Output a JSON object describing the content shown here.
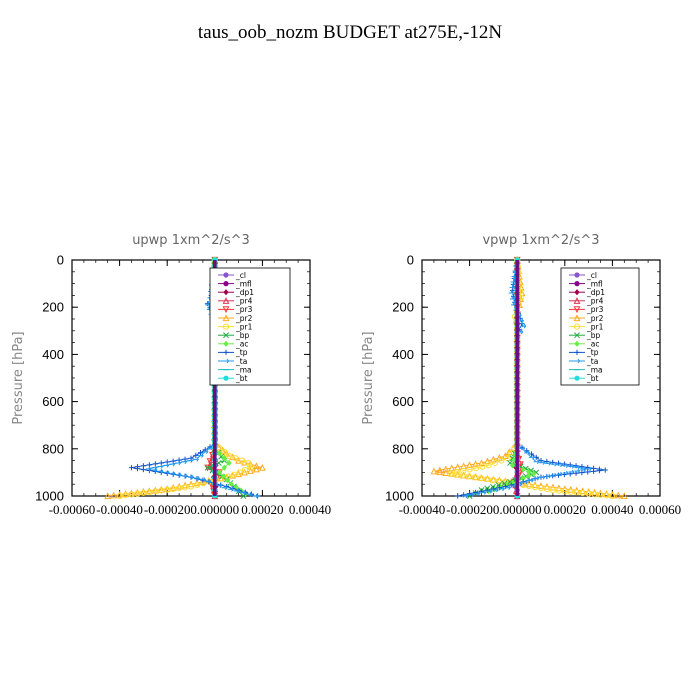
{
  "figure_title": "taus_oob_nozm  BUDGET at275E,-12N",
  "chart_data": [
    {
      "type": "line",
      "title": "upwp   1xm^2/s^3",
      "ylabel": "Pressure [hPa]",
      "ylim": [
        0,
        1000
      ],
      "y_inverted": true,
      "xlim": [
        -0.0006,
        0.0004
      ],
      "yticks": [
        "0",
        "200",
        "400",
        "600",
        "800",
        "1000"
      ],
      "xtick_labels": [
        "-0.00060",
        "-0.00040",
        "-0.00020",
        "0.000000",
        "0.00020",
        "0.00040"
      ],
      "legend_position": "top-right",
      "series": [
        {
          "name": "_cl",
          "color": "#8855cc",
          "marker": "circle-filled",
          "values": [
            [
              0,
              0
            ],
            [
              0,
              1000
            ]
          ]
        },
        {
          "name": "_mfl",
          "color": "#8b008b",
          "marker": "circle-filled",
          "values": [
            [
              0,
              0
            ],
            [
              0,
              1000
            ]
          ]
        },
        {
          "name": "_dp1",
          "color": "#a0004a",
          "marker": "diamond",
          "values": [
            [
              0,
              0
            ],
            [
              0,
              800
            ],
            [
              5e-06,
              870
            ],
            [
              -5e-06,
              920
            ],
            [
              5e-06,
              960
            ],
            [
              0,
              1000
            ]
          ]
        },
        {
          "name": "_pr4",
          "color": "#dd3355",
          "marker": "triangle",
          "values": [
            [
              0,
              0
            ],
            [
              0,
              800
            ],
            [
              -2e-05,
              870
            ],
            [
              1e-05,
              900
            ],
            [
              -5e-06,
              950
            ],
            [
              0,
              1000
            ]
          ]
        },
        {
          "name": "_pr3",
          "color": "#ff3333",
          "marker": "triangle-down",
          "values": [
            [
              0,
              0
            ],
            [
              0,
              800
            ],
            [
              -3e-05,
              880
            ],
            [
              2e-05,
              900
            ],
            [
              -1e-05,
              960
            ],
            [
              0,
              1000
            ]
          ]
        },
        {
          "name": "_pr2",
          "color": "#ffaa22",
          "marker": "triangle",
          "values": [
            [
              0,
              0
            ],
            [
              1.5e-05,
              170
            ],
            [
              1e-05,
              200
            ],
            [
              5e-06,
              260
            ],
            [
              0,
              300
            ],
            [
              0,
              780
            ],
            [
              5e-05,
              820
            ],
            [
              0.0001,
              850
            ],
            [
              0.0002,
              880
            ],
            [
              5e-05,
              920
            ],
            [
              -0.0002,
              970
            ],
            [
              -0.00045,
              1000
            ]
          ]
        },
        {
          "name": "_pr1",
          "color": "#ffdd33",
          "marker": "circle-open",
          "values": [
            [
              0,
              0
            ],
            [
              1e-05,
              180
            ],
            [
              5e-06,
              230
            ],
            [
              0,
              280
            ],
            [
              0,
              780
            ],
            [
              6e-05,
              830
            ],
            [
              0.00014,
              860
            ],
            [
              0.00015,
              880
            ],
            [
              8e-05,
              910
            ],
            [
              -0.0001,
              960
            ],
            [
              -0.0004,
              1000
            ]
          ]
        },
        {
          "name": "_bp",
          "color": "#22aa44",
          "marker": "x",
          "values": [
            [
              0,
              0
            ],
            [
              0,
              800
            ],
            [
              4e-05,
              850
            ],
            [
              -3e-05,
              880
            ],
            [
              5e-05,
              930
            ],
            [
              8e-05,
              960
            ],
            [
              0.00012,
              1000
            ]
          ]
        },
        {
          "name": "_ac",
          "color": "#66ee44",
          "marker": "diamond",
          "values": [
            [
              0,
              0
            ],
            [
              0,
              800
            ],
            [
              6e-05,
              860
            ],
            [
              2e-05,
              900
            ],
            [
              7e-05,
              950
            ],
            [
              0.00013,
              990
            ]
          ]
        },
        {
          "name": "_tp",
          "color": "#1155cc",
          "marker": "plus",
          "values": [
            [
              0,
              0
            ],
            [
              -1.5e-05,
              150
            ],
            [
              -3e-05,
              185
            ],
            [
              -1e-05,
              220
            ],
            [
              0,
              270
            ],
            [
              0,
              780
            ],
            [
              -0.0001,
              840
            ],
            [
              -0.00035,
              880
            ],
            [
              -0.0001,
              920
            ],
            [
              5e-05,
              960
            ],
            [
              0.00018,
              1000
            ]
          ]
        },
        {
          "name": "_ta",
          "color": "#2299ee",
          "marker": "arrow",
          "values": [
            [
              0,
              0
            ],
            [
              -2e-05,
              160
            ],
            [
              -3e-05,
              190
            ],
            [
              -1.5e-05,
              230
            ],
            [
              0,
              280
            ],
            [
              0,
              780
            ],
            [
              -8e-05,
              845
            ],
            [
              -0.00028,
              885
            ],
            [
              -5e-05,
              930
            ],
            [
              4e-05,
              965
            ],
            [
              0.00017,
              1000
            ]
          ]
        },
        {
          "name": "_ma",
          "color": "#22bbcc",
          "marker": "dash",
          "values": [
            [
              0,
              0
            ],
            [
              0,
              1000
            ]
          ]
        },
        {
          "name": "_bt",
          "color": "#22dddd",
          "marker": "circle-filled",
          "values": [
            [
              0,
              0
            ],
            [
              0,
              1000
            ]
          ]
        }
      ]
    },
    {
      "type": "line",
      "title": "vpwp   1xm^2/s^3",
      "ylabel": "Pressure [hPa]",
      "ylim": [
        0,
        1000
      ],
      "y_inverted": true,
      "xlim": [
        -0.0004,
        0.0006
      ],
      "yticks": [
        "0",
        "200",
        "400",
        "600",
        "800",
        "1000"
      ],
      "xtick_labels": [
        "-0.00040",
        "-0.00020",
        "0.000000",
        "0.00020",
        "0.00040",
        "0.00060"
      ],
      "legend_position": "top-right",
      "series": [
        {
          "name": "_cl",
          "color": "#8855cc",
          "marker": "circle-filled",
          "values": [
            [
              0,
              0
            ],
            [
              0,
              1000
            ]
          ]
        },
        {
          "name": "_mfl",
          "color": "#8b008b",
          "marker": "circle-filled",
          "values": [
            [
              0,
              0
            ],
            [
              0,
              1000
            ]
          ]
        },
        {
          "name": "_dp1",
          "color": "#a0004a",
          "marker": "diamond",
          "values": [
            [
              0,
              0
            ],
            [
              0,
              800
            ],
            [
              -5e-06,
              880
            ],
            [
              5e-06,
              930
            ],
            [
              0,
              1000
            ]
          ]
        },
        {
          "name": "_pr4",
          "color": "#dd3355",
          "marker": "triangle",
          "values": [
            [
              0,
              0
            ],
            [
              0,
              800
            ],
            [
              1e-05,
              880
            ],
            [
              -1e-05,
              930
            ],
            [
              0,
              1000
            ]
          ]
        },
        {
          "name": "_pr3",
          "color": "#ff3333",
          "marker": "triangle-down",
          "values": [
            [
              0,
              0
            ],
            [
              0,
              820
            ],
            [
              2e-05,
              890
            ],
            [
              -1e-05,
              940
            ],
            [
              0,
              1000
            ]
          ]
        },
        {
          "name": "_pr2",
          "color": "#ffaa22",
          "marker": "triangle",
          "values": [
            [
              0,
              0
            ],
            [
              2e-05,
              140
            ],
            [
              1e-05,
              190
            ],
            [
              0,
              250
            ],
            [
              0,
              780
            ],
            [
              -5e-05,
              830
            ],
            [
              -0.00015,
              860
            ],
            [
              -0.00035,
              895
            ],
            [
              -0.0001,
              930
            ],
            [
              0.0002,
              970
            ],
            [
              0.00045,
              1000
            ]
          ]
        },
        {
          "name": "_pr1",
          "color": "#ffdd33",
          "marker": "circle-open",
          "values": [
            [
              0,
              0
            ],
            [
              1.5e-05,
              160
            ],
            [
              -1e-05,
              240
            ],
            [
              0,
              290
            ],
            [
              0,
              780
            ],
            [
              -4e-05,
              840
            ],
            [
              -0.00012,
              870
            ],
            [
              -0.00028,
              905
            ],
            [
              -5e-05,
              940
            ],
            [
              0.00015,
              975
            ],
            [
              0.0004,
              1000
            ]
          ]
        },
        {
          "name": "_bp",
          "color": "#22aa44",
          "marker": "x",
          "values": [
            [
              0,
              0
            ],
            [
              0,
              800
            ],
            [
              -3e-05,
              860
            ],
            [
              8e-05,
              900
            ],
            [
              -3e-05,
              940
            ],
            [
              -0.00015,
              975
            ],
            [
              -0.0002,
              1000
            ]
          ]
        },
        {
          "name": "_ac",
          "color": "#66ee44",
          "marker": "diamond",
          "values": [
            [
              0,
              0
            ],
            [
              0,
              800
            ],
            [
              -2e-05,
              870
            ],
            [
              7e-05,
              905
            ],
            [
              -2e-05,
              945
            ],
            [
              -0.00012,
              980
            ]
          ]
        },
        {
          "name": "_tp",
          "color": "#1155cc",
          "marker": "plus",
          "values": [
            [
              0,
              0
            ],
            [
              -2e-05,
              130
            ],
            [
              -1e-05,
              180
            ],
            [
              2e-05,
              270
            ],
            [
              0,
              320
            ],
            [
              0,
              780
            ],
            [
              0.0001,
              850
            ],
            [
              0.00037,
              890
            ],
            [
              0.0001,
              920
            ],
            [
              -5e-05,
              960
            ],
            [
              -0.00025,
              1000
            ]
          ]
        },
        {
          "name": "_ta",
          "color": "#2299ee",
          "marker": "arrow",
          "values": [
            [
              0,
              0
            ],
            [
              -2.5e-05,
              140
            ],
            [
              -1.5e-05,
              190
            ],
            [
              2.5e-05,
              280
            ],
            [
              0,
              330
            ],
            [
              0,
              780
            ],
            [
              8e-05,
              855
            ],
            [
              0.0003,
              885
            ],
            [
              8e-05,
              925
            ],
            [
              -4e-05,
              965
            ],
            [
              -0.00022,
              1000
            ]
          ]
        },
        {
          "name": "_ma",
          "color": "#22bbcc",
          "marker": "dash",
          "values": [
            [
              0,
              0
            ],
            [
              0,
              1000
            ]
          ]
        },
        {
          "name": "_bt",
          "color": "#22dddd",
          "marker": "circle-filled",
          "values": [
            [
              0,
              0
            ],
            [
              0,
              1000
            ]
          ]
        }
      ]
    }
  ]
}
